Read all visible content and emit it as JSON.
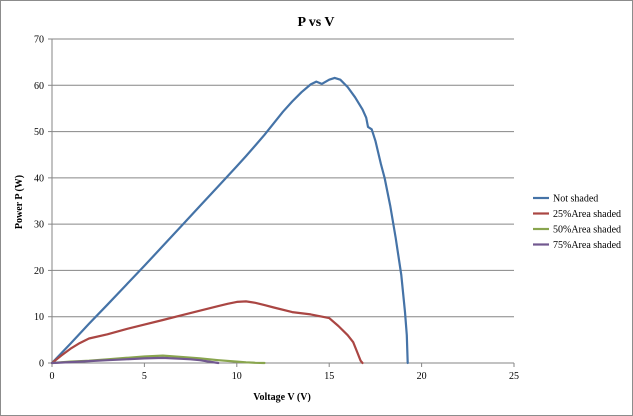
{
  "chart_data": {
    "type": "line",
    "title": "P vs V",
    "xlabel": "Voltage V (V)",
    "ylabel": "Power P (W)",
    "xlim": [
      0,
      25
    ],
    "ylim": [
      0,
      70
    ],
    "xticks": [
      0,
      5,
      10,
      15,
      20,
      25
    ],
    "yticks": [
      0,
      10,
      20,
      30,
      40,
      50,
      60,
      70
    ],
    "grid": "horizontal",
    "legend_position": "right",
    "series": [
      {
        "name": "Not shaded",
        "color": "#4573a7",
        "points": [
          [
            0,
            0
          ],
          [
            1,
            4.2
          ],
          [
            2,
            8.5
          ],
          [
            3,
            12.6
          ],
          [
            4,
            16.8
          ],
          [
            5,
            21
          ],
          [
            6,
            25.3
          ],
          [
            7,
            29.6
          ],
          [
            8,
            33.9
          ],
          [
            9,
            38.2
          ],
          [
            10,
            42.5
          ],
          [
            10.5,
            44.7
          ],
          [
            11,
            47
          ],
          [
            11.5,
            49.3
          ],
          [
            12,
            51.8
          ],
          [
            12.5,
            54.3
          ],
          [
            13,
            56.5
          ],
          [
            13.5,
            58.5
          ],
          [
            14,
            60.2
          ],
          [
            14.3,
            60.8
          ],
          [
            14.6,
            60.3
          ],
          [
            15,
            61.2
          ],
          [
            15.3,
            61.6
          ],
          [
            15.6,
            61.2
          ],
          [
            16,
            59.6
          ],
          [
            16.4,
            57.4
          ],
          [
            16.8,
            54.8
          ],
          [
            17,
            53
          ],
          [
            17.1,
            51
          ],
          [
            17.3,
            50.5
          ],
          [
            17.5,
            48
          ],
          [
            17.8,
            43
          ],
          [
            18,
            40
          ],
          [
            18.3,
            34
          ],
          [
            18.6,
            27
          ],
          [
            18.9,
            19
          ],
          [
            19.1,
            11
          ],
          [
            19.2,
            6
          ],
          [
            19.25,
            0
          ]
        ]
      },
      {
        "name": "25%Area shaded",
        "color": "#aa4643",
        "points": [
          [
            0,
            0
          ],
          [
            0.5,
            1.6
          ],
          [
            1,
            3.1
          ],
          [
            1.5,
            4.3
          ],
          [
            2,
            5.3
          ],
          [
            3,
            6.2
          ],
          [
            4,
            7.3
          ],
          [
            5,
            8.3
          ],
          [
            6,
            9.3
          ],
          [
            7,
            10.3
          ],
          [
            8,
            11.3
          ],
          [
            9,
            12.3
          ],
          [
            9.5,
            12.8
          ],
          [
            10,
            13.2
          ],
          [
            10.5,
            13.3
          ],
          [
            11,
            13
          ],
          [
            11.5,
            12.5
          ],
          [
            12,
            12
          ],
          [
            13,
            11
          ],
          [
            14,
            10.5
          ],
          [
            15,
            9.7
          ],
          [
            15.5,
            8
          ],
          [
            16,
            6
          ],
          [
            16.3,
            4.5
          ],
          [
            16.5,
            2.5
          ],
          [
            16.7,
            0.5
          ],
          [
            16.8,
            0
          ]
        ]
      },
      {
        "name": "50%Area shaded",
        "color": "#89a54e",
        "points": [
          [
            0,
            0
          ],
          [
            1,
            0.3
          ],
          [
            2,
            0.5
          ],
          [
            3,
            0.8
          ],
          [
            4,
            1.1
          ],
          [
            5,
            1.4
          ],
          [
            6,
            1.6
          ],
          [
            7,
            1.3
          ],
          [
            8,
            1.0
          ],
          [
            9,
            0.6
          ],
          [
            10,
            0.3
          ],
          [
            10.5,
            0.15
          ],
          [
            11,
            0.05
          ],
          [
            11.5,
            0
          ]
        ]
      },
      {
        "name": "75%Area shaded",
        "color": "#71588f",
        "points": [
          [
            0,
            0
          ],
          [
            1,
            0.2
          ],
          [
            2,
            0.4
          ],
          [
            3,
            0.6
          ],
          [
            4,
            0.8
          ],
          [
            5,
            1.0
          ],
          [
            6,
            1.1
          ],
          [
            7,
            0.9
          ],
          [
            7.5,
            0.8
          ],
          [
            8,
            0.6
          ],
          [
            8.5,
            0.3
          ],
          [
            9,
            0
          ]
        ]
      }
    ]
  }
}
